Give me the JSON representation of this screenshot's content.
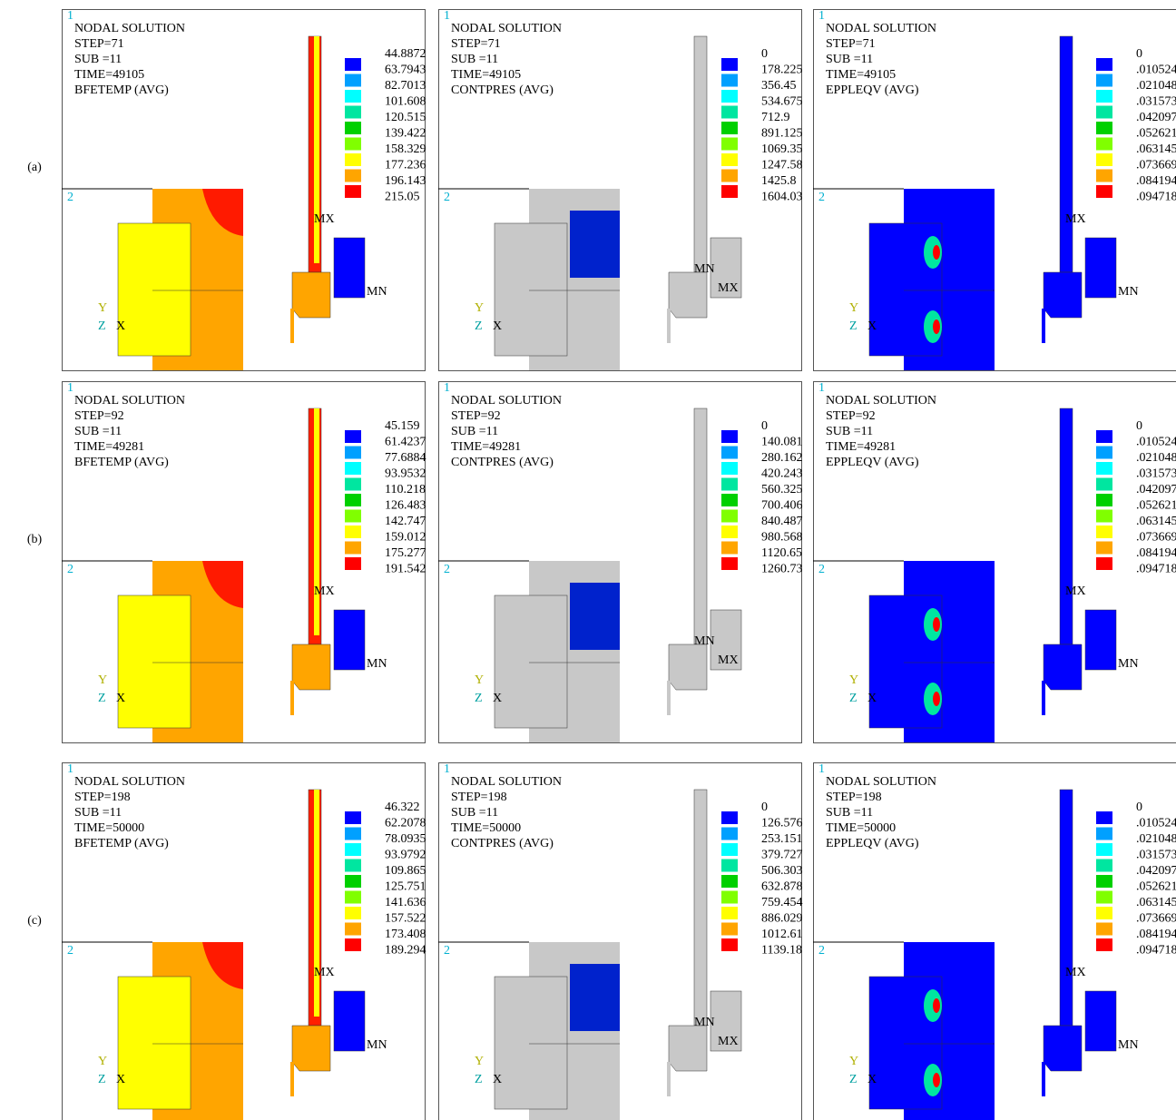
{
  "rows": [
    {
      "label": "(a)",
      "panels": [
        {
          "window_labels": [
            "1",
            "2"
          ],
          "header": [
            "NODAL SOLUTION",
            "STEP=71",
            "SUB =11",
            "TIME=49105",
            "BFETEMP  (AVG)"
          ],
          "legend": [
            "44.8872",
            "63.7943",
            "82.7013",
            "101.608",
            "120.515",
            "139.422",
            "158.329",
            "177.236",
            "196.143",
            "215.05"
          ],
          "extremes": [
            "MX",
            "MN"
          ],
          "triad": [
            "Y",
            "Z",
            "X"
          ]
        },
        {
          "window_labels": [
            "1",
            "2"
          ],
          "header": [
            "NODAL SOLUTION",
            "STEP=71",
            "SUB =11",
            "TIME=49105",
            "CONTPRES (AVG)"
          ],
          "legend": [
            "0",
            "178.225",
            "356.45",
            "534.675",
            "712.9",
            "891.125",
            "1069.35",
            "1247.58",
            "1425.8",
            "1604.03"
          ],
          "extremes": [
            "MX",
            "MN"
          ],
          "triad": [
            "Y",
            "Z",
            "X"
          ]
        },
        {
          "window_labels": [
            "1",
            "2"
          ],
          "header": [
            "NODAL SOLUTION",
            "STEP=71",
            "SUB =11",
            "TIME=49105",
            "EPPLEQV  (AVG)"
          ],
          "legend": [
            "0",
            ".010524",
            ".021048",
            ".031573",
            ".042097",
            ".052621",
            ".063145",
            ".073669",
            ".084194",
            ".094718"
          ],
          "extremes": [
            "MX",
            "MN"
          ],
          "triad": [
            "Y",
            "Z",
            "X"
          ]
        }
      ]
    },
    {
      "label": "(b)",
      "panels": [
        {
          "window_labels": [
            "1",
            "2"
          ],
          "header": [
            "NODAL SOLUTION",
            "STEP=92",
            "SUB =11",
            "TIME=49281",
            "BFETEMP  (AVG)"
          ],
          "legend": [
            "45.159",
            "61.4237",
            "77.6884",
            "93.9532",
            "110.218",
            "126.483",
            "142.747",
            "159.012",
            "175.277",
            "191.542"
          ],
          "extremes": [
            "MX",
            "MN"
          ],
          "triad": [
            "Y",
            "Z",
            "X"
          ]
        },
        {
          "window_labels": [
            "1",
            "2"
          ],
          "header": [
            "NODAL SOLUTION",
            "STEP=92",
            "SUB =11",
            "TIME=49281",
            "CONTPRES (AVG)"
          ],
          "legend": [
            "0",
            "140.081",
            "280.162",
            "420.243",
            "560.325",
            "700.406",
            "840.487",
            "980.568",
            "1120.65",
            "1260.73"
          ],
          "extremes": [
            "MX",
            "MN"
          ],
          "triad": [
            "Y",
            "Z",
            "X"
          ]
        },
        {
          "window_labels": [
            "1",
            "2"
          ],
          "header": [
            "NODAL SOLUTION",
            "STEP=92",
            "SUB =11",
            "TIME=49281",
            "EPPLEQV  (AVG)"
          ],
          "legend": [
            "0",
            ".010524",
            ".021048",
            ".031573",
            ".042097",
            ".052621",
            ".063145",
            ".073669",
            ".084194",
            ".094718"
          ],
          "extremes": [
            "MX",
            "MN"
          ],
          "triad": [
            "Y",
            "Z",
            "X"
          ]
        }
      ]
    },
    {
      "label": "(c)",
      "panels": [
        {
          "window_labels": [
            "1",
            "2"
          ],
          "header": [
            "NODAL SOLUTION",
            "STEP=198",
            "SUB =11",
            "TIME=50000",
            "BFETEMP  (AVG)"
          ],
          "legend": [
            "46.322",
            "62.2078",
            "78.0935",
            "93.9792",
            "109.865",
            "125.751",
            "141.636",
            "157.522",
            "173.408",
            "189.294"
          ],
          "extremes": [
            "MX",
            "MN"
          ],
          "triad": [
            "Y",
            "Z",
            "X"
          ]
        },
        {
          "window_labels": [
            "1",
            "2"
          ],
          "header": [
            "NODAL SOLUTION",
            "STEP=198",
            "SUB =11",
            "TIME=50000",
            "CONTPRES (AVG)"
          ],
          "legend": [
            "0",
            "126.576",
            "253.151",
            "379.727",
            "506.303",
            "632.878",
            "759.454",
            "886.029",
            "1012.61",
            "1139.18"
          ],
          "extremes": [
            "MX",
            "MN"
          ],
          "triad": [
            "Y",
            "Z",
            "X"
          ]
        },
        {
          "window_labels": [
            "1",
            "2"
          ],
          "header": [
            "NODAL SOLUTION",
            "STEP=198",
            "SUB =11",
            "TIME=50000",
            "EPPLEQV  (AVG)"
          ],
          "legend": [
            "0",
            ".010524",
            ".021048",
            ".031573",
            ".042097",
            ".052621",
            ".063145",
            ".073669",
            ".084194",
            ".094718"
          ],
          "extremes": [
            "MX",
            "MN"
          ],
          "triad": [
            "Y",
            "Z",
            "X"
          ]
        }
      ]
    }
  ]
}
